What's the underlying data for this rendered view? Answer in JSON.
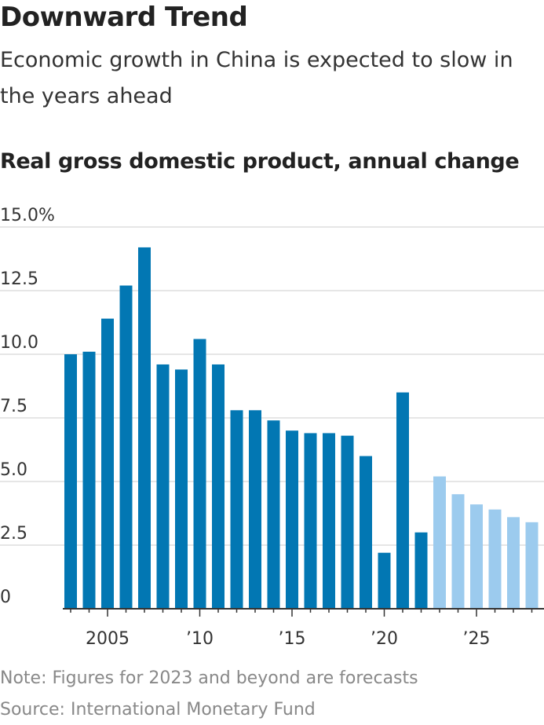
{
  "title": "Downward Trend",
  "subtitle": "Economic growth in China is expected to slow in the years ahead",
  "chart_title": "Real gross domestic product, annual change",
  "note": "Note: Figures for 2023 and beyond are forecasts",
  "source": "Source: International Monetary Fund",
  "colors": {
    "actual": "#0277b3",
    "forecast": "#9ccbee",
    "grid": "#dddddd",
    "axis": "#333333"
  },
  "chart_data": {
    "type": "bar",
    "title": "Real gross domestic product, annual change",
    "xlabel": "",
    "ylabel": "",
    "ylim": [
      0,
      15
    ],
    "y_ticks": [
      {
        "value": 15,
        "label": "15.0%"
      },
      {
        "value": 12.5,
        "label": "12.5"
      },
      {
        "value": 10,
        "label": "10.0"
      },
      {
        "value": 7.5,
        "label": "7.5"
      },
      {
        "value": 5,
        "label": "5.0"
      },
      {
        "value": 2.5,
        "label": "2.5"
      },
      {
        "value": 0,
        "label": "0"
      }
    ],
    "x_ticks": [
      {
        "year": 2005,
        "label": "2005"
      },
      {
        "year": 2010,
        "label": "’10"
      },
      {
        "year": 2015,
        "label": "’15"
      },
      {
        "year": 2020,
        "label": "’20"
      },
      {
        "year": 2025,
        "label": "’25"
      }
    ],
    "forecast_from": 2023,
    "grid": true,
    "categories": [
      2003,
      2004,
      2005,
      2006,
      2007,
      2008,
      2009,
      2010,
      2011,
      2012,
      2013,
      2014,
      2015,
      2016,
      2017,
      2018,
      2019,
      2020,
      2021,
      2022,
      2023,
      2024,
      2025,
      2026,
      2027,
      2028
    ],
    "values": [
      10.0,
      10.1,
      11.4,
      12.7,
      14.2,
      9.6,
      9.4,
      10.6,
      9.6,
      7.8,
      7.8,
      7.4,
      7.0,
      6.9,
      6.9,
      6.8,
      6.0,
      2.2,
      8.5,
      3.0,
      5.2,
      4.5,
      4.1,
      3.9,
      3.6,
      3.4
    ]
  }
}
